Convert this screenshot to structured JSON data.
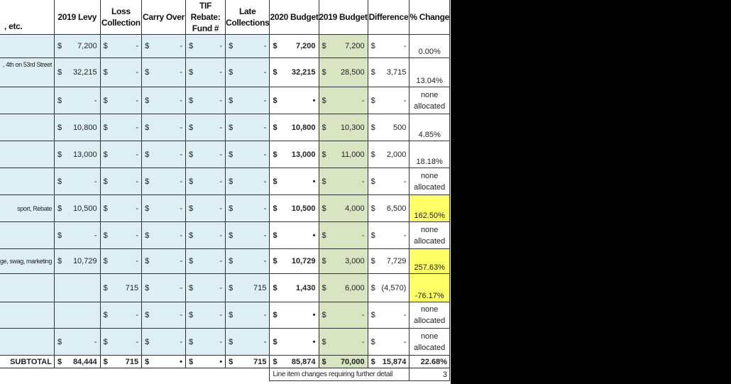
{
  "header": {
    "desc": ", etc.",
    "levy": "2019 Levy",
    "loss": "Loss Collection",
    "carry": "Carry Over",
    "tif": "TIF Rebate: Fund #",
    "late": "Late Collections",
    "budget2020": "2020 Budget",
    "budget2019": "2019 Budget",
    "difference": "Difference",
    "pct": "% Change"
  },
  "currency": "$",
  "rows": [
    {
      "desc": "",
      "levy": "7,200",
      "loss": "-",
      "carry": "-",
      "tif": "-",
      "late": "-",
      "b2020": "7,200",
      "b2019": "7,200",
      "diff": "-",
      "pct": "0.00%",
      "highlight": false
    },
    {
      "desc": ", 4th on 53rd Street",
      "levy": "32,215",
      "loss": "-",
      "carry": "-",
      "tif": "-",
      "late": "-",
      "b2020": "32,215",
      "b2019": "28,500",
      "diff": "3,715",
      "pct": "13.04%",
      "highlight": false
    },
    {
      "desc": "",
      "levy": "-",
      "loss": "-",
      "carry": "-",
      "tif": "-",
      "late": "-",
      "b2020": "-",
      "b2019": "-",
      "diff": "-",
      "pct": "none allocated",
      "highlight": false
    },
    {
      "desc": "",
      "levy": "10,800",
      "loss": "-",
      "carry": "-",
      "tif": "-",
      "late": "-",
      "b2020": "10,800",
      "b2019": "10,300",
      "diff": "500",
      "pct": "4.85%",
      "highlight": false
    },
    {
      "desc": "",
      "levy": "13,000",
      "loss": "-",
      "carry": "-",
      "tif": "-",
      "late": "-",
      "b2020": "13,000",
      "b2019": "11,000",
      "diff": "2,000",
      "pct": "18.18%",
      "highlight": false
    },
    {
      "desc": "",
      "levy": "-",
      "loss": "-",
      "carry": "-",
      "tif": "-",
      "late": "-",
      "b2020": "-",
      "b2019": "-",
      "diff": "-",
      "pct": "none allocated",
      "highlight": false
    },
    {
      "desc": "sport, Rebate",
      "levy": "10,500",
      "loss": "-",
      "carry": "-",
      "tif": "-",
      "late": "-",
      "b2020": "10,500",
      "b2019": "4,000",
      "diff": "6,500",
      "pct": "162.50%",
      "highlight": true
    },
    {
      "desc": "",
      "levy": "-",
      "loss": "-",
      "carry": "-",
      "tif": "-",
      "late": "-",
      "b2020": "-",
      "b2019": "-",
      "diff": "-",
      "pct": "none allocated",
      "highlight": false
    },
    {
      "desc": "ge, swag, marketing",
      "levy": "10,729",
      "loss": "-",
      "carry": "-",
      "tif": "-",
      "late": "-",
      "b2020": "10,729",
      "b2019": "3,000",
      "diff": "7,729",
      "pct": "257.63%",
      "highlight": true
    },
    {
      "desc": "",
      "levy": "",
      "loss": "715",
      "carry": "-",
      "tif": "-",
      "late": "715",
      "b2020": "1,430",
      "b2019": "6,000",
      "diff": "(4,570)",
      "pct": "-76.17%",
      "highlight": true
    },
    {
      "desc": "",
      "levy": "",
      "loss": "-",
      "carry": "-",
      "tif": "-",
      "late": "-",
      "b2020": "-",
      "b2019": "-",
      "diff": "-",
      "pct": "none allocated",
      "highlight": false
    },
    {
      "desc": "",
      "levy": "-",
      "loss": "-",
      "carry": "-",
      "tif": "-",
      "late": "-",
      "b2020": "-",
      "b2019": "-",
      "diff": "-",
      "pct": "none allocated",
      "highlight": false
    }
  ],
  "subtotal": {
    "label": "SUBTOTAL",
    "levy": "84,444",
    "loss": "715",
    "carry": "-",
    "tif": "-",
    "late": "715",
    "b2020": "85,874",
    "b2019": "70,000",
    "diff": "15,874",
    "pct": "22.68%"
  },
  "footer": {
    "note": "Line item changes requiring further detail",
    "count": "3"
  },
  "colors": {
    "input_blue": "#ddeef5",
    "budget2019_green": "#d9e4c3",
    "highlight_yellow": "#ffff66",
    "background": "#000000"
  }
}
